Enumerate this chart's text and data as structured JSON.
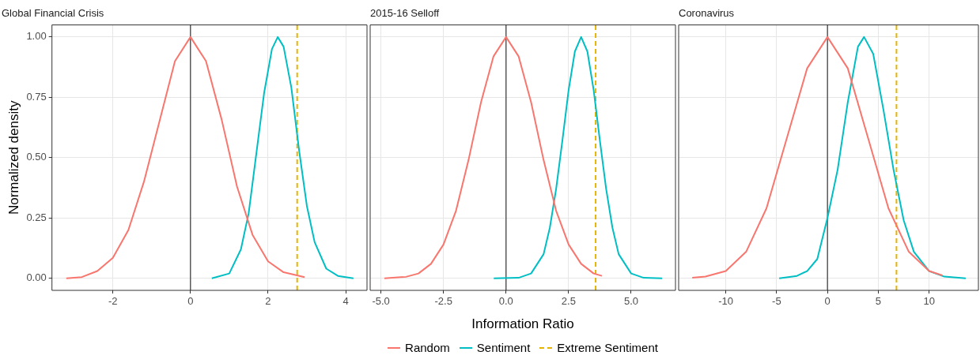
{
  "chart_data": [
    {
      "type": "line",
      "title": "Global Financial Crisis",
      "ylabel": "Normalized density",
      "xlim": [
        -3.57,
        4.55
      ],
      "xticks": [
        -2,
        0,
        2,
        4
      ],
      "ylim": [
        -0.05,
        1.05
      ],
      "yticks": [
        {
          "value": 0,
          "label": "0.00"
        },
        {
          "value": 0.25,
          "label": "0.25"
        },
        {
          "value": 0.5,
          "label": "0.50"
        },
        {
          "value": 0.75,
          "label": "0.75"
        },
        {
          "value": 1,
          "label": "1.00"
        }
      ],
      "grid": true,
      "legend": false,
      "ref_lines": [
        {
          "axis": "x",
          "value": 0,
          "color": "#333333"
        }
      ],
      "series": [
        {
          "color": "#f8766d",
          "x": [
            -3.2,
            -2.8,
            -2.4,
            -2.0,
            -1.6,
            -1.2,
            -0.8,
            -0.4,
            0,
            0.4,
            0.8,
            1.2,
            1.6,
            2.0,
            2.4,
            2.94
          ],
          "values": [
            0.0,
            0.005,
            0.03,
            0.085,
            0.2,
            0.4,
            0.65,
            0.9,
            1.0,
            0.9,
            0.66,
            0.38,
            0.18,
            0.07,
            0.025,
            0.005
          ]
        },
        {
          "color": "#00bfc4",
          "x": [
            0.55,
            1.0,
            1.3,
            1.5,
            1.7,
            1.9,
            2.1,
            2.25,
            2.4,
            2.6,
            2.8,
            3.0,
            3.2,
            3.5,
            3.8,
            4.2
          ],
          "values": [
            0.0,
            0.02,
            0.12,
            0.27,
            0.52,
            0.77,
            0.95,
            1.0,
            0.96,
            0.79,
            0.53,
            0.3,
            0.15,
            0.04,
            0.01,
            0.0
          ]
        },
        {
          "color": "#e6b400",
          "line_style": "dashed",
          "x": [
            2.75,
            2.75
          ],
          "values": [
            -0.05,
            1.05
          ]
        }
      ]
    },
    {
      "type": "line",
      "title": "2015-16 Selloff",
      "xlabel": "Information Ratio",
      "xlim": [
        -5.43,
        6.77
      ],
      "xticks": [
        {
          "value": -5,
          "label": "-5.0"
        },
        -2.5,
        {
          "value": 0,
          "label": "0.0"
        },
        2.5,
        {
          "value": 5,
          "label": "5.0"
        }
      ],
      "ylim": [
        -0.05,
        1.05
      ],
      "yticks": [
        0,
        0.25,
        0.5,
        0.75,
        1
      ],
      "tick_labels": "x",
      "grid": true,
      "legend": "bottom",
      "ref_lines": [
        {
          "axis": "x",
          "value": 0,
          "color": "#333333"
        }
      ],
      "series": [
        {
          "name": "Random",
          "color": "#f8766d",
          "x": [
            -4.86,
            -4,
            -3.5,
            -3,
            -2.5,
            -2,
            -1.5,
            -1,
            -0.5,
            0,
            0.5,
            1,
            1.5,
            2,
            2.5,
            3,
            3.5,
            3.83
          ],
          "values": [
            0.0,
            0.006,
            0.02,
            0.06,
            0.14,
            0.28,
            0.49,
            0.73,
            0.92,
            1.0,
            0.92,
            0.73,
            0.49,
            0.28,
            0.14,
            0.06,
            0.02,
            0.01
          ]
        },
        {
          "name": "Sentiment",
          "color": "#00bfc4",
          "x": [
            -0.49,
            0.5,
            1.0,
            1.5,
            1.75,
            2.0,
            2.25,
            2.5,
            2.75,
            3.0,
            3.25,
            3.5,
            3.75,
            4.0,
            4.25,
            4.5,
            5.0,
            5.5,
            6.24
          ],
          "values": [
            0.0,
            0.002,
            0.02,
            0.1,
            0.21,
            0.37,
            0.57,
            0.78,
            0.94,
            1.0,
            0.94,
            0.78,
            0.57,
            0.37,
            0.21,
            0.1,
            0.02,
            0.002,
            0.0
          ]
        },
        {
          "name": "Extreme Sentiment",
          "color": "#e6b400",
          "line_style": "dashed",
          "x": [
            3.58,
            3.58
          ],
          "values": [
            -0.05,
            1.05
          ]
        }
      ]
    },
    {
      "type": "line",
      "title": "Coronavirus",
      "xlim": [
        -14.64,
        14.85
      ],
      "xticks": [
        -10,
        -5,
        0,
        5,
        10
      ],
      "ylim": [
        -0.05,
        1.05
      ],
      "yticks": [
        0,
        0.25,
        0.5,
        0.75,
        1
      ],
      "tick_labels": "x",
      "grid": true,
      "legend": false,
      "ref_lines": [
        {
          "axis": "x",
          "value": 0,
          "color": "#333333"
        }
      ],
      "series": [
        {
          "color": "#f8766d",
          "x": [
            -13.3,
            -12,
            -10,
            -8,
            -6,
            -4,
            -2,
            0,
            2,
            4,
            6,
            8,
            10,
            11.3
          ],
          "values": [
            0.002,
            0.007,
            0.03,
            0.11,
            0.29,
            0.58,
            0.87,
            1.0,
            0.87,
            0.58,
            0.29,
            0.11,
            0.03,
            0.012
          ]
        },
        {
          "color": "#00bfc4",
          "x": [
            -4.75,
            -3,
            -2,
            -1,
            0,
            1,
            2,
            3,
            3.6,
            4.5,
            5.5,
            6.5,
            7.5,
            8.5,
            10,
            11.5,
            13.6
          ],
          "values": [
            0.0,
            0.01,
            0.03,
            0.08,
            0.25,
            0.45,
            0.73,
            0.96,
            1.0,
            0.93,
            0.7,
            0.45,
            0.24,
            0.11,
            0.03,
            0.007,
            0.0
          ]
        },
        {
          "color": "#e6b400",
          "line_style": "dashed",
          "x": [
            6.79,
            6.79
          ],
          "values": [
            -0.05,
            1.05
          ]
        }
      ]
    }
  ]
}
